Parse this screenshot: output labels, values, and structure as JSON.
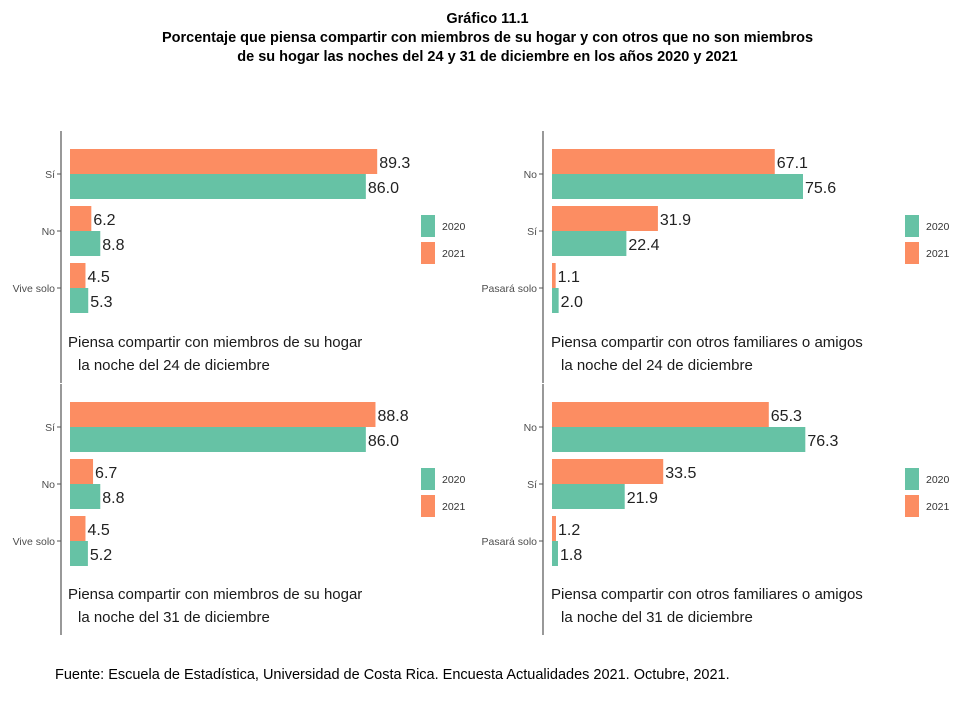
{
  "figure": {
    "label": "Gráfico 11.1",
    "title_line1": "Porcentaje que piensa compartir con miembros de su hogar y con otros que no son miembros",
    "title_line2": "de su hogar las noches del 24 y 31 de diciembre en los años 2020 y 2021",
    "source": "Fuente: Escuela de Estadística, Universidad de Costa Rica. Encuesta Actualidades 2021. Octubre, 2021."
  },
  "colors": {
    "2020": "#66c2a5",
    "2021": "#fc8d62"
  },
  "chart_data": [
    {
      "type": "bar",
      "orientation": "horizontal",
      "caption": [
        "Piensa compartir con miembros de su hogar",
        "la noche del 24 de diciembre"
      ],
      "categories": [
        "Sí",
        "No",
        "Vive solo"
      ],
      "series": [
        {
          "name": "2021",
          "values": [
            89.3,
            6.2,
            4.5
          ]
        },
        {
          "name": "2020",
          "values": [
            86.0,
            8.8,
            5.3
          ]
        }
      ],
      "legend": [
        "2020",
        "2021"
      ],
      "legend_position": "right"
    },
    {
      "type": "bar",
      "orientation": "horizontal",
      "caption": [
        "Piensa compartir con otros familiares o amigos",
        "la noche del 24 de diciembre"
      ],
      "categories": [
        "No",
        "Sí",
        "Pasará solo"
      ],
      "series": [
        {
          "name": "2021",
          "values": [
            67.1,
            31.9,
            1.1
          ]
        },
        {
          "name": "2020",
          "values": [
            75.6,
            22.4,
            2.0
          ]
        }
      ],
      "legend": [
        "2020",
        "2021"
      ],
      "legend_position": "right"
    },
    {
      "type": "bar",
      "orientation": "horizontal",
      "caption": [
        "Piensa compartir con miembros de su hogar",
        "la noche del 31 de diciembre"
      ],
      "categories": [
        "Sí",
        "No",
        "Vive solo"
      ],
      "series": [
        {
          "name": "2021",
          "values": [
            88.8,
            6.7,
            4.5
          ]
        },
        {
          "name": "2020",
          "values": [
            86.0,
            8.8,
            5.2
          ]
        }
      ],
      "legend": [
        "2020",
        "2021"
      ],
      "legend_position": "right"
    },
    {
      "type": "bar",
      "orientation": "horizontal",
      "caption": [
        "Piensa compartir con otros familiares o amigos",
        "la noche del 31 de diciembre"
      ],
      "categories": [
        "No",
        "Sí",
        "Pasará solo"
      ],
      "series": [
        {
          "name": "2021",
          "values": [
            65.3,
            33.5,
            1.2
          ]
        },
        {
          "name": "2020",
          "values": [
            76.3,
            21.9,
            1.8
          ]
        }
      ],
      "legend": [
        "2020",
        "2021"
      ],
      "legend_position": "right"
    }
  ]
}
